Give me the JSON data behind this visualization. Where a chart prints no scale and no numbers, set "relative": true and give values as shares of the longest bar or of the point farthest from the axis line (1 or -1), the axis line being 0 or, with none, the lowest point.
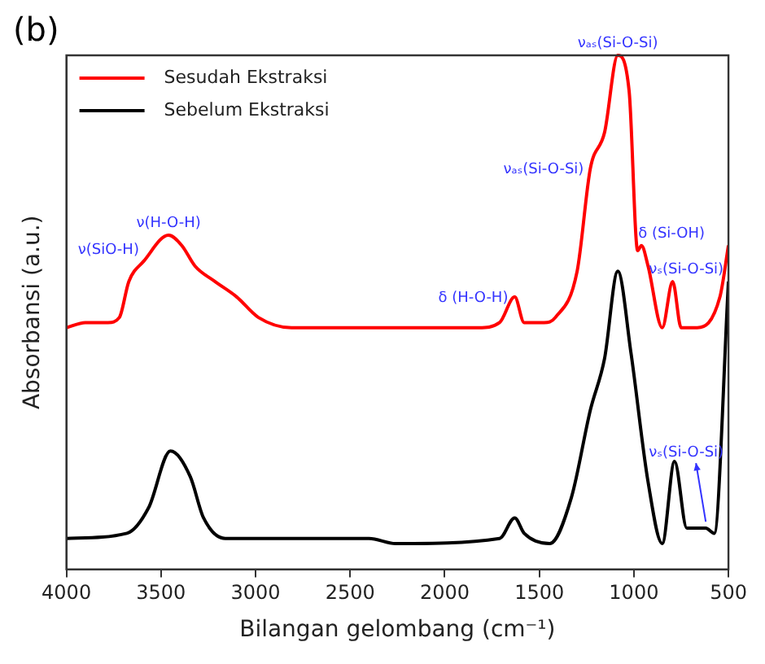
{
  "chart_data": {
    "type": "line",
    "title": "(b)",
    "xlabel": "Bilangan gelombang (cm⁻¹)",
    "ylabel": "Absorbansi (a.u.)",
    "relative": true,
    "marker": "none",
    "legend": "top left",
    "xlim": [
      4000,
      500
    ],
    "xticks": [
      4000,
      3500,
      3000,
      2500,
      2000,
      1500,
      1000,
      500
    ],
    "series": [
      {
        "name": "Sesudah Ekstraksi",
        "color": "#ff0000",
        "x": [
          4000,
          3900,
          3780,
          3720,
          3670,
          3590,
          3460,
          3390,
          3320,
          3215,
          3100,
          2985,
          2810,
          2400,
          1820,
          1710,
          1630,
          1580,
          1475,
          1415,
          1300,
          1230,
          1155,
          1085,
          1025,
          980,
          960,
          925,
          850,
          795,
          750,
          665,
          545,
          500
        ],
        "values": [
          0.47,
          0.48,
          0.48,
          0.49,
          0.56,
          0.6,
          0.65,
          0.63,
          0.59,
          0.56,
          0.53,
          0.49,
          0.47,
          0.47,
          0.47,
          0.48,
          0.53,
          0.48,
          0.48,
          0.49,
          0.58,
          0.78,
          0.85,
          1,
          0.93,
          0.62,
          0.63,
          0.59,
          0.47,
          0.56,
          0.47,
          0.47,
          0.53,
          0.63
        ]
      },
      {
        "name": "Sebelum Ekstraksi",
        "color": "#000000",
        "x": [
          4000,
          3680,
          3565,
          3450,
          3345,
          3275,
          3160,
          2400,
          2260,
          1710,
          1630,
          1580,
          1445,
          1330,
          1230,
          1155,
          1085,
          1015,
          925,
          850,
          785,
          720,
          620,
          575,
          500
        ],
        "values": [
          0.06,
          0.07,
          0.12,
          0.23,
          0.18,
          0.1,
          0.06,
          0.06,
          0.05,
          0.06,
          0.1,
          0.07,
          0.05,
          0.14,
          0.31,
          0.41,
          0.58,
          0.42,
          0.17,
          0.05,
          0.21,
          0.08,
          0.08,
          0.07,
          0.56
        ]
      }
    ],
    "annotations": [
      {
        "text": "ν(SiO-H)",
        "x": 3650,
        "y": 0.57
      },
      {
        "text": "ν(H-O-H)",
        "x": 3460,
        "y": 0.65
      },
      {
        "text": "δ (H-O-H)",
        "x": 1630,
        "y": 0.53
      },
      {
        "text": "νₐₛ(Si-O-Si)",
        "x": 1230,
        "y": 0.78
      },
      {
        "text": "νₐₛ(Si-O-Si)",
        "x": 1085,
        "y": 1
      },
      {
        "text": "δ (Si-OH)",
        "x": 960,
        "y": 0.63
      },
      {
        "text": "νₛ(Si-O-Si)",
        "x": 795,
        "y": 0.56
      },
      {
        "text": "νₛ(Si-O-Si)",
        "x": 620,
        "y": 0.08
      }
    ]
  }
}
